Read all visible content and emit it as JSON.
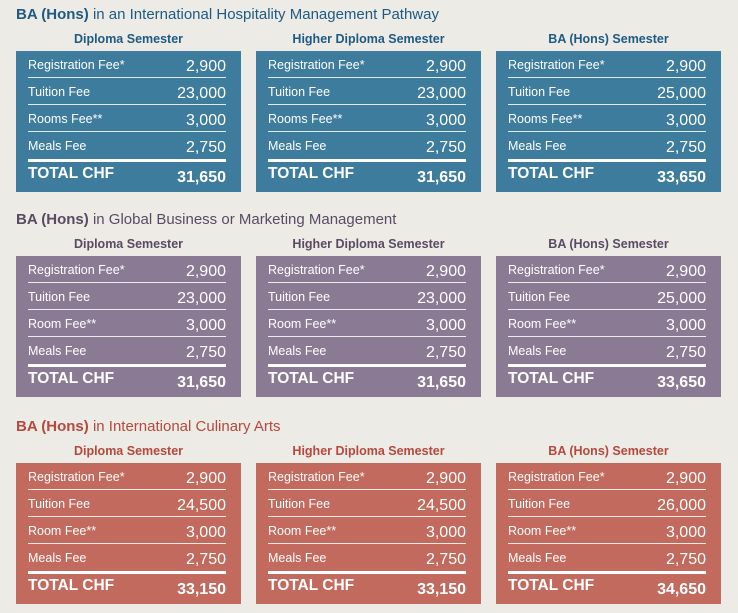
{
  "colors": {
    "blue": "#3d7c9c",
    "purple": "#8b7a94",
    "red": "#c36a5e",
    "blue_text": "#1f5a82",
    "purple_text": "#5a4a63",
    "red_text": "#b5493d"
  },
  "sections": [
    {
      "title_bold": "BA (Hons)",
      "title_rest": " in an International Hospitality Management Pathway",
      "columns": [
        {
          "heading": "Diploma Semester",
          "rows": [
            {
              "label": "Registration Fee*",
              "value": "2,900"
            },
            {
              "label": "Tuition Fee",
              "value": "23,000"
            },
            {
              "label": "Rooms Fee**",
              "value": "3,000"
            },
            {
              "label": "Meals Fee",
              "value": "2,750"
            }
          ],
          "total_label": "TOTAL CHF",
          "total_value": "31,650"
        },
        {
          "heading": "Higher Diploma Semester",
          "rows": [
            {
              "label": "Registration Fee*",
              "value": "2,900"
            },
            {
              "label": "Tuition Fee",
              "value": "23,000"
            },
            {
              "label": "Rooms Fee**",
              "value": "3,000"
            },
            {
              "label": "Meals Fee",
              "value": "2,750"
            }
          ],
          "total_label": "TOTAL CHF",
          "total_value": "31,650"
        },
        {
          "heading": "BA (Hons) Semester",
          "rows": [
            {
              "label": "Registration Fee*",
              "value": "2,900"
            },
            {
              "label": "Tuition Fee",
              "value": "25,000"
            },
            {
              "label": "Rooms Fee**",
              "value": "3,000"
            },
            {
              "label": "Meals Fee",
              "value": "2,750"
            }
          ],
          "total_label": "TOTAL CHF",
          "total_value": "33,650"
        }
      ]
    },
    {
      "title_bold": "BA (Hons)",
      "title_rest": " in Global Business or Marketing Management",
      "columns": [
        {
          "heading": "Diploma Semester",
          "rows": [
            {
              "label": "Registration Fee*",
              "value": "2,900"
            },
            {
              "label": "Tuition Fee",
              "value": "23,000"
            },
            {
              "label": "Room Fee**",
              "value": "3,000"
            },
            {
              "label": "Meals Fee",
              "value": "2,750"
            }
          ],
          "total_label": "TOTAL CHF",
          "total_value": "31,650"
        },
        {
          "heading": "Higher Diploma Semester",
          "rows": [
            {
              "label": "Registration Fee*",
              "value": "2,900"
            },
            {
              "label": "Tuition Fee",
              "value": "23,000"
            },
            {
              "label": "Room Fee**",
              "value": "3,000"
            },
            {
              "label": "Meals Fee",
              "value": "2,750"
            }
          ],
          "total_label": "TOTAL CHF",
          "total_value": "31,650"
        },
        {
          "heading": "BA (Hons) Semester",
          "rows": [
            {
              "label": "Registration Fee*",
              "value": "2,900"
            },
            {
              "label": "Tuition Fee",
              "value": "25,000"
            },
            {
              "label": "Room Fee**",
              "value": "3,000"
            },
            {
              "label": "Meals Fee",
              "value": "2,750"
            }
          ],
          "total_label": "TOTAL CHF",
          "total_value": "33,650"
        }
      ]
    },
    {
      "title_bold": "BA (Hons)",
      "title_rest": " in International Culinary Arts",
      "columns": [
        {
          "heading": "Diploma Semester",
          "rows": [
            {
              "label": "Registration Fee*",
              "value": "2,900"
            },
            {
              "label": "Tuition Fee",
              "value": "24,500"
            },
            {
              "label": "Room Fee**",
              "value": "3,000"
            },
            {
              "label": "Meals Fee",
              "value": "2,750"
            }
          ],
          "total_label": "TOTAL CHF",
          "total_value": "33,150"
        },
        {
          "heading": "Higher Diploma Semester",
          "rows": [
            {
              "label": "Registration Fee*",
              "value": "2,900"
            },
            {
              "label": "Tuition Fee",
              "value": "24,500"
            },
            {
              "label": "Room Fee**",
              "value": "3,000"
            },
            {
              "label": "Meals Fee",
              "value": "2,750"
            }
          ],
          "total_label": "TOTAL CHF",
          "total_value": "33,150"
        },
        {
          "heading": "BA (Hons) Semester",
          "rows": [
            {
              "label": "Registration Fee*",
              "value": "2,900"
            },
            {
              "label": "Tuition Fee",
              "value": "26,000"
            },
            {
              "label": "Room Fee**",
              "value": "3,000"
            },
            {
              "label": "Meals Fee",
              "value": "2,750"
            }
          ],
          "total_label": "TOTAL CHF",
          "total_value": "34,650"
        }
      ]
    }
  ]
}
